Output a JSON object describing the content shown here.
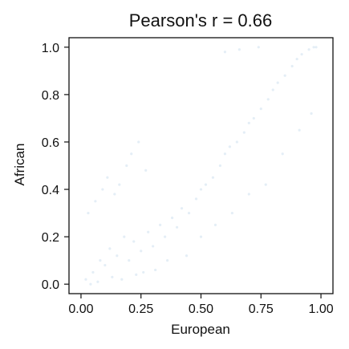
{
  "chart_data": {
    "type": "scatter",
    "title": "Pearson's r = 0.66",
    "xlabel": "European",
    "ylabel": "African",
    "xlim": [
      -0.05,
      1.05
    ],
    "ylim": [
      -0.04,
      1.04
    ],
    "xticks": [
      0.0,
      0.25,
      0.5,
      0.75,
      1.0
    ],
    "xtick_labels": [
      "0.00",
      "0.25",
      "0.50",
      "0.75",
      "1.00"
    ],
    "yticks": [
      0.0,
      0.2,
      0.4,
      0.6,
      0.8,
      1.0
    ],
    "ytick_labels": [
      "0.0",
      "0.2",
      "0.4",
      "0.6",
      "0.8",
      "1.0"
    ],
    "grid": false,
    "legend": "none",
    "point_color": "#1f77b4",
    "point_alpha": 0.12,
    "series": [
      {
        "x": [
          0.02,
          0.05,
          0.08,
          0.1,
          0.12,
          0.15,
          0.18,
          0.2,
          0.22,
          0.25,
          0.28,
          0.3,
          0.33,
          0.35,
          0.38,
          0.4,
          0.42,
          0.45,
          0.48,
          0.5,
          0.52,
          0.55,
          0.58,
          0.6,
          0.62,
          0.65,
          0.68,
          0.7,
          0.72,
          0.75,
          0.78,
          0.8,
          0.82,
          0.85,
          0.88,
          0.9,
          0.92,
          0.95,
          0.97,
          0.98,
          0.03,
          0.06,
          0.09,
          0.11,
          0.14,
          0.16,
          0.19,
          0.21,
          0.24,
          0.27,
          0.04,
          0.07,
          0.13,
          0.17,
          0.23,
          0.26,
          0.31,
          0.36,
          0.44,
          0.5,
          0.56,
          0.63,
          0.7,
          0.77,
          0.84,
          0.91,
          0.96,
          0.6,
          0.66,
          0.74
        ],
        "y": [
          0.02,
          0.05,
          0.1,
          0.08,
          0.15,
          0.12,
          0.2,
          0.1,
          0.18,
          0.14,
          0.22,
          0.16,
          0.25,
          0.2,
          0.28,
          0.24,
          0.32,
          0.3,
          0.36,
          0.4,
          0.42,
          0.45,
          0.5,
          0.55,
          0.58,
          0.6,
          0.64,
          0.68,
          0.7,
          0.74,
          0.78,
          0.82,
          0.85,
          0.88,
          0.92,
          0.95,
          0.97,
          0.99,
          1.0,
          1.0,
          0.3,
          0.35,
          0.4,
          0.45,
          0.38,
          0.42,
          0.5,
          0.55,
          0.6,
          0.48,
          0.0,
          0.01,
          0.03,
          0.02,
          0.04,
          0.05,
          0.06,
          0.1,
          0.12,
          0.2,
          0.25,
          0.3,
          0.38,
          0.42,
          0.55,
          0.65,
          0.72,
          0.98,
          0.99,
          1.0
        ]
      }
    ]
  }
}
